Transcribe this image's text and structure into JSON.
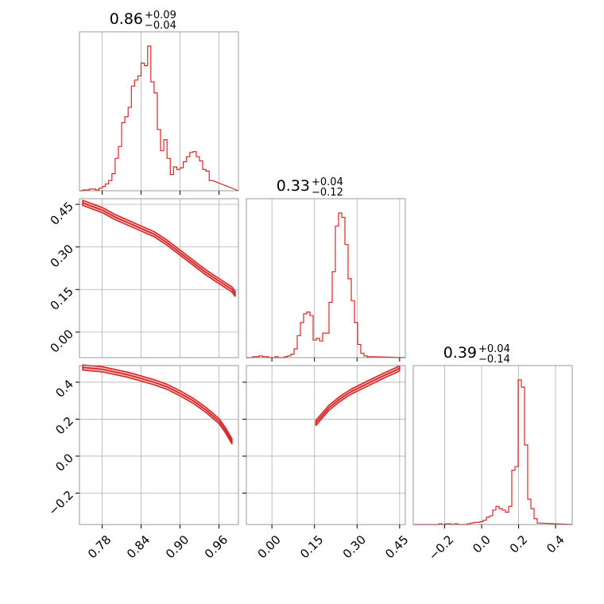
{
  "chart_data": {
    "type": "corner",
    "colors": {
      "series": "#d62728",
      "fill": "#f2c4c4",
      "grid": "#b0b0b0",
      "frame": "#808080"
    },
    "parameters": [
      {
        "title_value": "0.86",
        "err_plus": "+0.09",
        "err_minus": "−0.04",
        "range": [
          0.745,
          0.99
        ],
        "ticks": [
          {
            "v": 0.78,
            "label": "0.78"
          },
          {
            "v": 0.84,
            "label": "0.84"
          },
          {
            "v": 0.9,
            "label": "0.90"
          },
          {
            "v": 0.96,
            "label": "0.96"
          }
        ]
      },
      {
        "title_value": "0.33",
        "err_plus": "+0.04",
        "err_minus": "−0.12",
        "range": [
          -0.09,
          0.47
        ],
        "ticks": [
          {
            "v": 0.0,
            "label": "0.00"
          },
          {
            "v": 0.15,
            "label": "0.15"
          },
          {
            "v": 0.3,
            "label": "0.30"
          },
          {
            "v": 0.45,
            "label": "0.45"
          }
        ]
      },
      {
        "title_value": "0.39",
        "err_plus": "+0.04",
        "err_minus": "−0.14",
        "range": [
          -0.37,
          0.49
        ],
        "ticks": [
          {
            "v": -0.2,
            "label": "−0.2"
          },
          {
            "v": 0.0,
            "label": "0.0"
          },
          {
            "v": 0.2,
            "label": "0.2"
          },
          {
            "v": 0.4,
            "label": "0.4"
          }
        ]
      }
    ],
    "histograms": [
      {
        "param": 0,
        "bin_width": 0.005,
        "counts": [
          0,
          1,
          1,
          2,
          2,
          1,
          3,
          5,
          8,
          12,
          20,
          38,
          52,
          80,
          87,
          98,
          123,
          130,
          135,
          150,
          147,
          170,
          128,
          115,
          72,
          47,
          60,
          38,
          19,
          28,
          25,
          27,
          34,
          40,
          45,
          46,
          40,
          35,
          25,
          23,
          12
        ]
      },
      {
        "param": 1,
        "bin_width": 0.0112,
        "counts": [
          0,
          0,
          1,
          1,
          2,
          1,
          1,
          0,
          0,
          1,
          0,
          0,
          1,
          2,
          4,
          10,
          25,
          40,
          50,
          52,
          48,
          20,
          22,
          19,
          28,
          28,
          63,
          98,
          150,
          165,
          160,
          129,
          90,
          65,
          40,
          15,
          5,
          2,
          1,
          1
        ]
      },
      {
        "param": 2,
        "bin_width": 0.0172,
        "counts": [
          0,
          0,
          0,
          0,
          0,
          0,
          0,
          0,
          1,
          0,
          1,
          1,
          0,
          1,
          0,
          0,
          0,
          1,
          2,
          3,
          3,
          4,
          6,
          10,
          12,
          20,
          25,
          22,
          20,
          17,
          25,
          75,
          80,
          200,
          190,
          110,
          35,
          22,
          8,
          2
        ]
      }
    ],
    "curves": [
      {
        "x_param": 0,
        "y_param": 1,
        "x": [
          0.75,
          0.78,
          0.8,
          0.82,
          0.84,
          0.86,
          0.88,
          0.9,
          0.92,
          0.94,
          0.96,
          0.98,
          0.985
        ],
        "y": [
          0.455,
          0.43,
          0.405,
          0.385,
          0.365,
          0.345,
          0.315,
          0.28,
          0.245,
          0.21,
          0.18,
          0.15,
          0.135
        ]
      },
      {
        "x_param": 0,
        "y_param": 2,
        "x": [
          0.75,
          0.78,
          0.8,
          0.82,
          0.84,
          0.86,
          0.88,
          0.9,
          0.92,
          0.94,
          0.96,
          0.97,
          0.98
        ],
        "y": [
          0.48,
          0.47,
          0.455,
          0.44,
          0.42,
          0.4,
          0.375,
          0.34,
          0.3,
          0.25,
          0.19,
          0.14,
          0.08
        ]
      },
      {
        "x_param": 1,
        "y_param": 2,
        "x": [
          0.155,
          0.2,
          0.24,
          0.28,
          0.32,
          0.36,
          0.4,
          0.43,
          0.45
        ],
        "y": [
          0.18,
          0.26,
          0.31,
          0.35,
          0.38,
          0.41,
          0.44,
          0.46,
          0.475
        ]
      }
    ],
    "grid": true
  }
}
